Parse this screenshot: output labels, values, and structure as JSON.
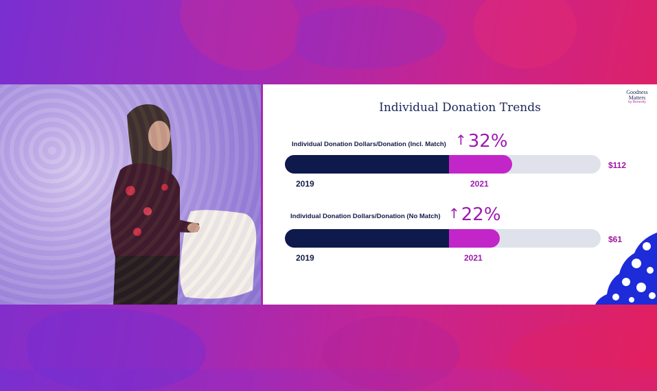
{
  "slide": {
    "title": "Individual Donation Trends",
    "logo": {
      "line1": "Goodness",
      "line2": "Matters",
      "line3": "by Benevity"
    }
  },
  "colors": {
    "year_2019": "#0e1a4c",
    "year_2021": "#c226c9",
    "track": "#dfe2ea",
    "accent_text": "#9d1ab0"
  },
  "chart_data": [
    {
      "type": "bar",
      "title": "Individual Donation Dollars/Donation (Incl. Match)",
      "change_label": "32%",
      "categories": [
        "2019",
        "2021"
      ],
      "fraction_of_track": {
        "2019": 0.52,
        "2021": 0.72
      },
      "value_2021_label": "$112"
    },
    {
      "type": "bar",
      "title": "Individual Donation Dollars/Donation (No Match)",
      "change_label": "22%",
      "categories": [
        "2019",
        "2021"
      ],
      "fraction_of_track": {
        "2019": 0.52,
        "2021": 0.68
      },
      "value_2021_label": "$61"
    }
  ]
}
